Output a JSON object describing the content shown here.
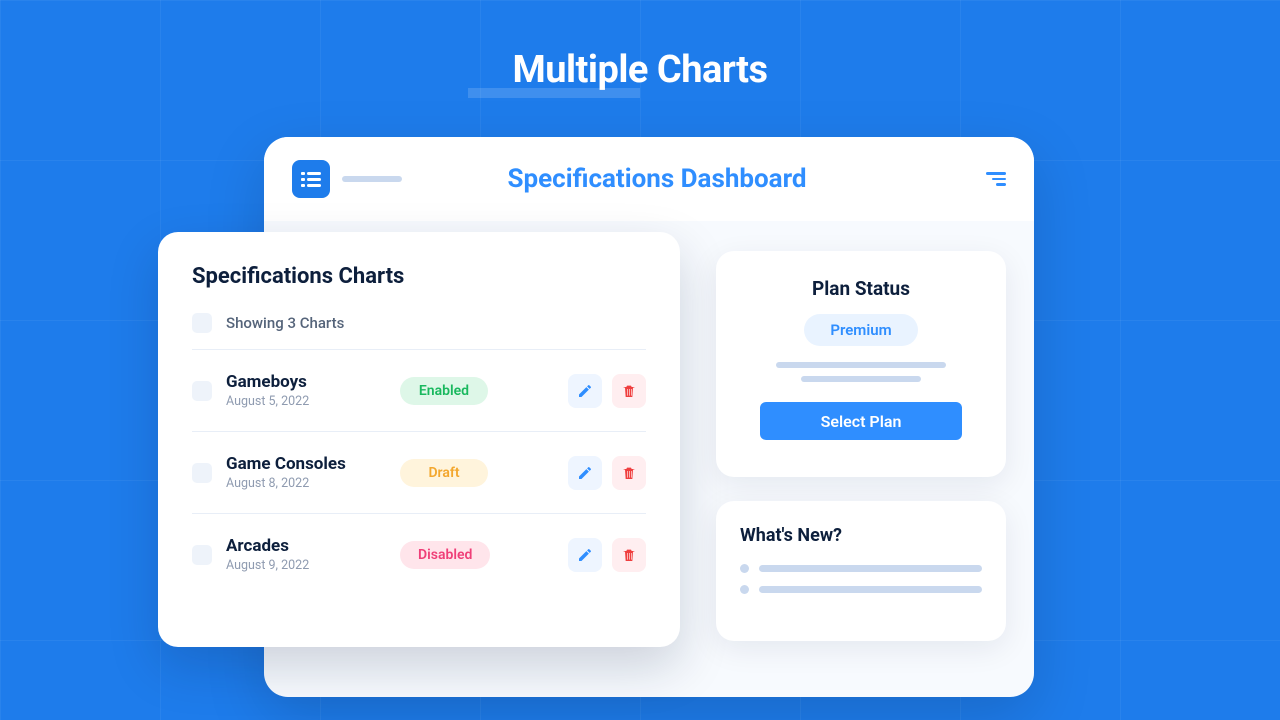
{
  "page_heading": "Multiple Charts",
  "colors": {
    "page_bg": "#1e7ceb",
    "accent": "#2f8eff",
    "card_bg": "#ffffff",
    "dash_bg": "#f7fafe",
    "text_dark": "#0d1f3c",
    "text_muted": "#8f9bb0",
    "placeholder": "#c9d8ee"
  },
  "dashboard": {
    "title": "Specifications Dashboard"
  },
  "charts_panel": {
    "title": "Specifications Charts",
    "summary": "Showing 3 Charts",
    "rows": [
      {
        "name": "Gameboys",
        "date": "August 5, 2022",
        "status": "Enabled",
        "status_bg": "#def7e8",
        "status_fg": "#19b85e"
      },
      {
        "name": "Game Consoles",
        "date": "August 8, 2022",
        "status": "Draft",
        "status_bg": "#fff4dc",
        "status_fg": "#f3a72e"
      },
      {
        "name": "Arcades",
        "date": "August 9, 2022",
        "status": "Disabled",
        "status_bg": "#ffe5eb",
        "status_fg": "#ef3f78"
      }
    ],
    "edit_icon_color": "#2f8eff",
    "delete_icon_color": "#ef3f3f"
  },
  "plan": {
    "title": "Plan Status",
    "badge": "Premium",
    "cta": "Select Plan"
  },
  "news": {
    "title": "What's New?"
  }
}
